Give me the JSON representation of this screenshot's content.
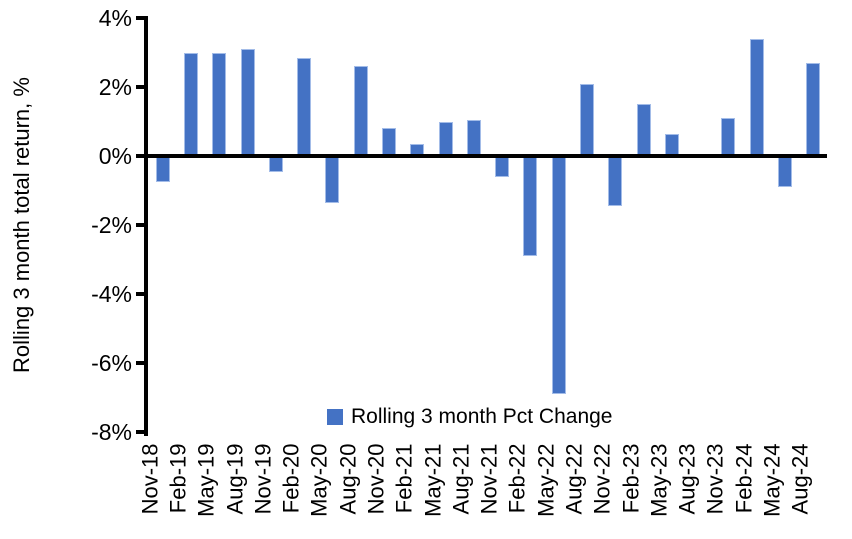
{
  "chart_data": {
    "type": "bar",
    "title": "",
    "ylabel": "Rolling 3 month total return, %",
    "xlabel": "",
    "categories": [
      "Nov-18",
      "Feb-19",
      "May-19",
      "Aug-19",
      "Nov-19",
      "Feb-20",
      "May-20",
      "Aug-20",
      "Nov-20",
      "Feb-21",
      "May-21",
      "Aug-21",
      "Nov-21",
      "Feb-22",
      "May-22",
      "Aug-22",
      "Nov-22",
      "Feb-23",
      "May-23",
      "Aug-23",
      "Nov-23",
      "Feb-24",
      "May-24",
      "Aug-24"
    ],
    "values": [
      -0.7,
      3.0,
      3.0,
      3.1,
      -0.4,
      2.85,
      -1.3,
      2.6,
      0.8,
      0.35,
      1.0,
      1.05,
      -0.55,
      -2.85,
      -6.85,
      2.1,
      -1.4,
      1.5,
      0.65,
      0.0,
      1.1,
      3.4,
      -0.85,
      2.7
    ],
    "series_name": "Rolling 3 month Pct Change",
    "legend": "Rolling 3 month Pct Change",
    "legend_position": "bottom-center-inside",
    "ylim": [
      -8,
      4
    ],
    "yticks": [
      4,
      2,
      0,
      -2,
      -4,
      -6,
      -8
    ],
    "ytick_labels": [
      "4%",
      "2%",
      "0%",
      "-2%",
      "-4%",
      "-6%",
      "-8%"
    ],
    "grid": false,
    "bar_color": "#4472C4",
    "bar_border_color": "#A3BCE8",
    "axis_color": "#000000",
    "text_color": "#000000",
    "background_color": "#FFFFFF"
  }
}
